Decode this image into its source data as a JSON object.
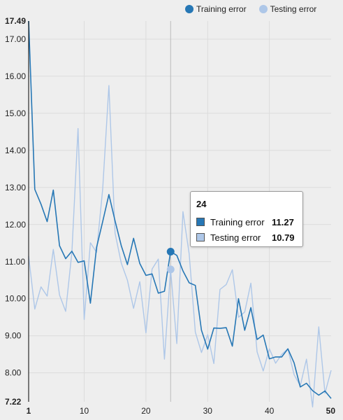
{
  "colors": {
    "training": "#2677b5",
    "testing": "#aec7e8",
    "crosshair": "#bbbbbb",
    "grid": "#dcdcdc"
  },
  "legend": {
    "training": "Training error",
    "testing": "Testing error"
  },
  "tooltip": {
    "x": "24",
    "training_label": "Training error",
    "training_value": "11.27",
    "testing_label": "Testing error",
    "testing_value": "10.79"
  },
  "chart_data": {
    "type": "line",
    "x": [
      1,
      2,
      3,
      4,
      5,
      6,
      7,
      8,
      9,
      10,
      11,
      12,
      13,
      14,
      15,
      16,
      17,
      18,
      19,
      20,
      21,
      22,
      23,
      24,
      25,
      26,
      27,
      28,
      29,
      30,
      31,
      32,
      33,
      34,
      35,
      36,
      37,
      38,
      39,
      40,
      41,
      42,
      43,
      44,
      45,
      46,
      47,
      48,
      49,
      50
    ],
    "series": [
      {
        "name": "Training error",
        "values": [
          17.49,
          12.95,
          12.55,
          12.08,
          12.93,
          11.43,
          11.08,
          11.28,
          10.98,
          11.02,
          9.88,
          11.38,
          12.08,
          12.81,
          12.1,
          11.43,
          10.92,
          11.63,
          10.95,
          10.63,
          10.67,
          10.15,
          10.2,
          11.27,
          11.17,
          10.75,
          10.43,
          10.36,
          9.15,
          8.64,
          9.21,
          9.2,
          9.22,
          8.72,
          10.0,
          9.15,
          9.76,
          8.9,
          9.02,
          8.38,
          8.43,
          8.43,
          8.65,
          8.27,
          7.62,
          7.72,
          7.52,
          7.4,
          7.51,
          7.31
        ]
      },
      {
        "name": "Testing error",
        "values": [
          11.15,
          9.72,
          10.32,
          10.07,
          11.33,
          10.1,
          9.66,
          11.25,
          14.59,
          9.44,
          11.51,
          11.25,
          12.96,
          15.75,
          11.77,
          10.96,
          10.5,
          9.74,
          10.46,
          9.08,
          10.8,
          11.07,
          8.37,
          10.79,
          8.79,
          12.35,
          11.21,
          9.1,
          8.55,
          9.03,
          8.25,
          10.25,
          10.38,
          10.78,
          9.5,
          9.64,
          10.42,
          8.57,
          8.05,
          8.65,
          8.26,
          8.5,
          8.65,
          7.95,
          7.65,
          8.37,
          7.08,
          9.24,
          7.45,
          8.07
        ]
      }
    ],
    "ylim": [
      7.22,
      17.49
    ],
    "xlim": [
      1,
      50
    ],
    "y_ticks": [
      "7.22",
      "8.00",
      "9.00",
      "10.00",
      "11.00",
      "12.00",
      "13.00",
      "14.00",
      "15.00",
      "16.00",
      "17.00",
      "17.49"
    ],
    "x_ticks": [
      "1",
      "10",
      "20",
      "30",
      "40",
      "50"
    ],
    "grid": true,
    "legend": "top-right"
  }
}
